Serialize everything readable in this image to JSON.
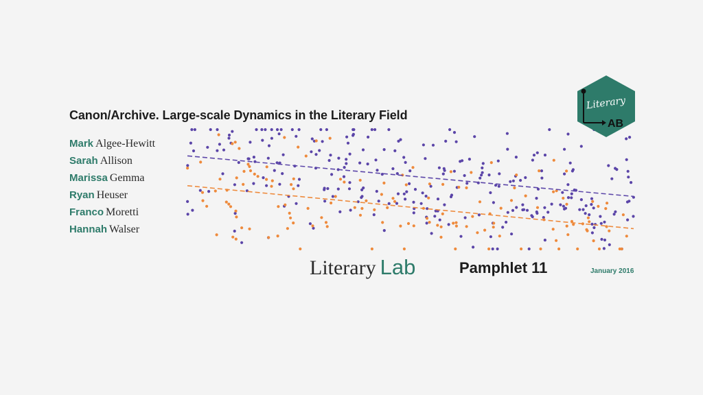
{
  "pamphlet": {
    "series_title": "Canon/Archive. Large-scale Dynamics in the Literary Field",
    "authors": [
      {
        "first": "Mark",
        "last": "Algee-Hewitt"
      },
      {
        "first": "Sarah",
        "last": "Allison"
      },
      {
        "first": "Marissa",
        "last": "Gemma"
      },
      {
        "first": "Ryan",
        "last": "Heuser"
      },
      {
        "first": "Franco",
        "last": "Moretti"
      },
      {
        "first": "Hannah",
        "last": "Walser"
      }
    ],
    "brand_word_1": "Literary",
    "brand_word_2": "Lab",
    "pamphlet_label": "Pamphlet 11",
    "date": "January 2016"
  },
  "logo": {
    "icon": "literary-lab-hexagon-logo",
    "line_1": "Literary",
    "line_2": "AB",
    "color": "#2e7b6a"
  },
  "colors": {
    "accent": "#2e7b6a",
    "purple_series": "#5b45a8",
    "orange_series": "#ee8a3c"
  },
  "chart_data": {
    "type": "scatter",
    "title": "",
    "xlabel": "",
    "ylabel": "",
    "grid": false,
    "legend": "none",
    "series": [
      {
        "color": "#5b45a8",
        "count": 290,
        "trend": {
          "x": [
            0,
            1
          ],
          "y": [
            0.78,
            0.44
          ]
        }
      },
      {
        "color": "#ee8a3c",
        "count": 150,
        "trend": {
          "x": [
            0,
            1
          ],
          "y": [
            0.53,
            0.17
          ]
        }
      }
    ]
  }
}
